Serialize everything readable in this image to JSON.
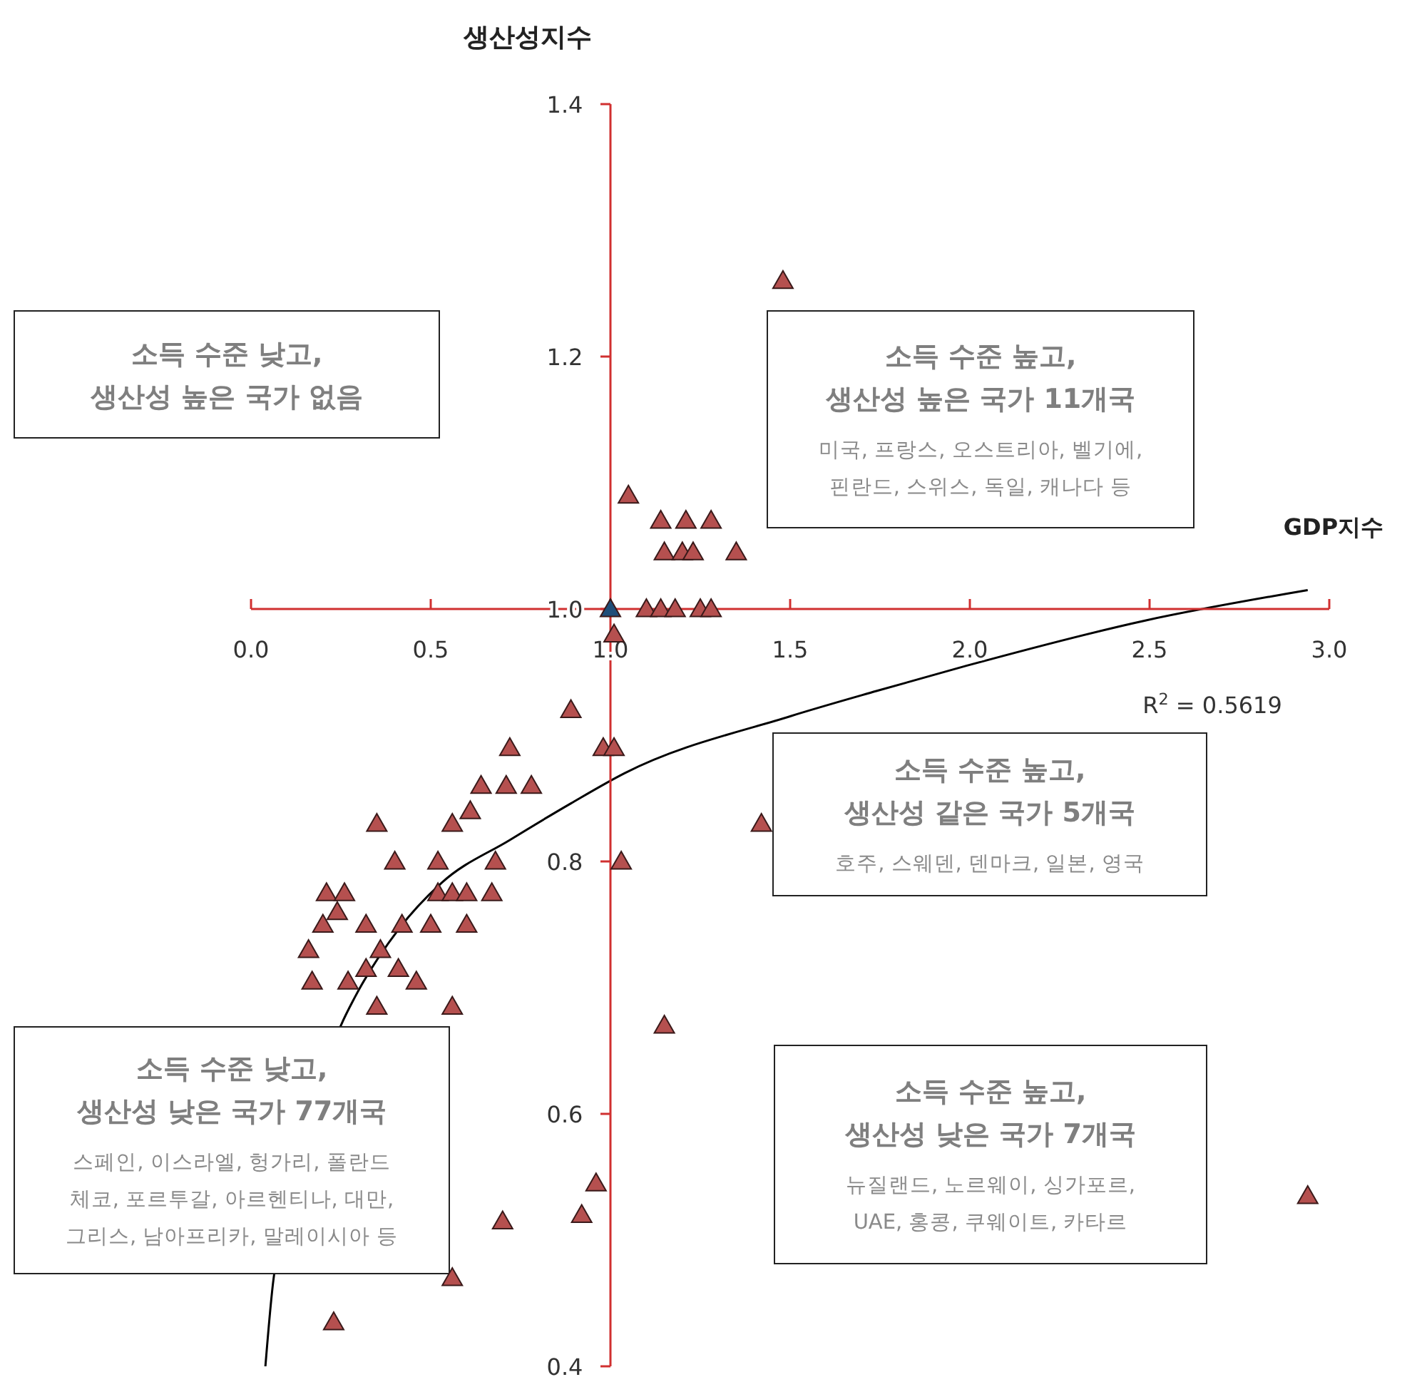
{
  "chart_data": {
    "type": "scatter",
    "xlabel": "GDP지수",
    "ylabel": "생산성지수",
    "xlim": [
      0,
      3
    ],
    "ylim": [
      0.4,
      1.4
    ],
    "xticks": [
      {
        "value": 0,
        "label": "0.0"
      },
      {
        "value": 0.5,
        "label": "0.5"
      },
      {
        "value": 1,
        "label": "1.0"
      },
      {
        "value": 1.5,
        "label": "1.5"
      },
      {
        "value": 2,
        "label": "2.0"
      },
      {
        "value": 2.5,
        "label": "2.5"
      },
      {
        "value": 3,
        "label": "3.0"
      }
    ],
    "yticks": [
      {
        "value": 0.4,
        "label": "0.4"
      },
      {
        "value": 0.6,
        "label": "0.6"
      },
      {
        "value": 0.8,
        "label": "0.8"
      },
      {
        "value": 1,
        "label": "1.0"
      },
      {
        "value": 1.2,
        "label": "1.2"
      },
      {
        "value": 1.4,
        "label": "1.4"
      }
    ],
    "marker": "triangle",
    "grid": false,
    "series": [
      {
        "color": "#b5504f",
        "x": [
          1.48,
          1.05,
          1.14,
          1.21,
          1.28,
          1.15,
          1.2,
          1.23,
          1.35,
          1.1,
          1.14,
          1.18,
          1.25,
          1.28,
          1.01,
          0.89,
          0.72,
          0.98,
          1.01,
          0.64,
          0.71,
          0.78,
          0.61,
          0.35,
          0.56,
          0.4,
          0.52,
          0.68,
          1.03,
          1.42,
          0.21,
          0.26,
          0.52,
          0.56,
          0.6,
          0.67,
          0.24,
          0.2,
          0.32,
          0.42,
          0.5,
          0.6,
          0.16,
          0.36,
          0.32,
          0.41,
          0.17,
          0.27,
          0.46,
          0.35,
          0.56,
          1.15,
          0.96,
          0.92,
          0.7,
          0.23,
          0.56,
          2.94
        ],
        "values": [
          1.26,
          1.09,
          1.07,
          1.07,
          1.07,
          1.045,
          1.045,
          1.045,
          1.045,
          1.0,
          1.0,
          1.0,
          1.0,
          1.0,
          0.98,
          0.92,
          0.89,
          0.89,
          0.89,
          0.86,
          0.86,
          0.86,
          0.84,
          0.83,
          0.83,
          0.8,
          0.8,
          0.8,
          0.8,
          0.83,
          0.775,
          0.775,
          0.775,
          0.775,
          0.775,
          0.775,
          0.76,
          0.75,
          0.75,
          0.75,
          0.75,
          0.75,
          0.73,
          0.73,
          0.715,
          0.715,
          0.705,
          0.705,
          0.705,
          0.685,
          0.685,
          0.67,
          0.545,
          0.52,
          0.515,
          0.435,
          0.47,
          0.535
        ]
      },
      {
        "color": "#1f4e79",
        "x": [
          1.0
        ],
        "values": [
          1.0
        ]
      },
      {
        "type": "line",
        "color": "#000000",
        "marker": "none",
        "line_style": "solid",
        "x": [
          0.04,
          0.063,
          0.25,
          0.29,
          0.41,
          0.53,
          0.72,
          0.89,
          1.04,
          1.5,
          1.74,
          1.99,
          2.49,
          2.94
        ],
        "values": [
          0.4,
          0.47,
          0.67,
          0.693,
          0.746,
          0.783,
          0.817,
          0.846,
          0.87,
          0.915,
          0.935,
          0.955,
          0.991,
          1.015
        ]
      }
    ],
    "annotations": [
      "소득 수준 낮고,\n생산성 높은 국가 없음",
      "소득 수준 높고,\n생산성 높은 국가 11개국\n\n미국, 프랑스, 오스트리아, 벨기에,\n핀란드, 스위스, 독일, 캐나다 등",
      "소득 수준 높고,\n생산성 같은 국가 5개국\n\n호주, 스웨덴, 덴마크, 일본, 영국",
      "소득 수준 낮고,\n생산성 낮은 국가 77개국\n\n스페인, 이스라엘, 헝가리, 폴란드\n체코, 포르투갈, 아르헨티나, 대만,\n그리스, 남아프리카, 말레이시아 등",
      "소득 수준 높고,\n생산성 낮은 국가 7개국\n\n뉴질랜드, 노르웨이, 싱가포르,\nUAE, 홍콩, 쿠웨이트, 카타르",
      "R$^{2}$ = 0.5619"
    ]
  }
}
